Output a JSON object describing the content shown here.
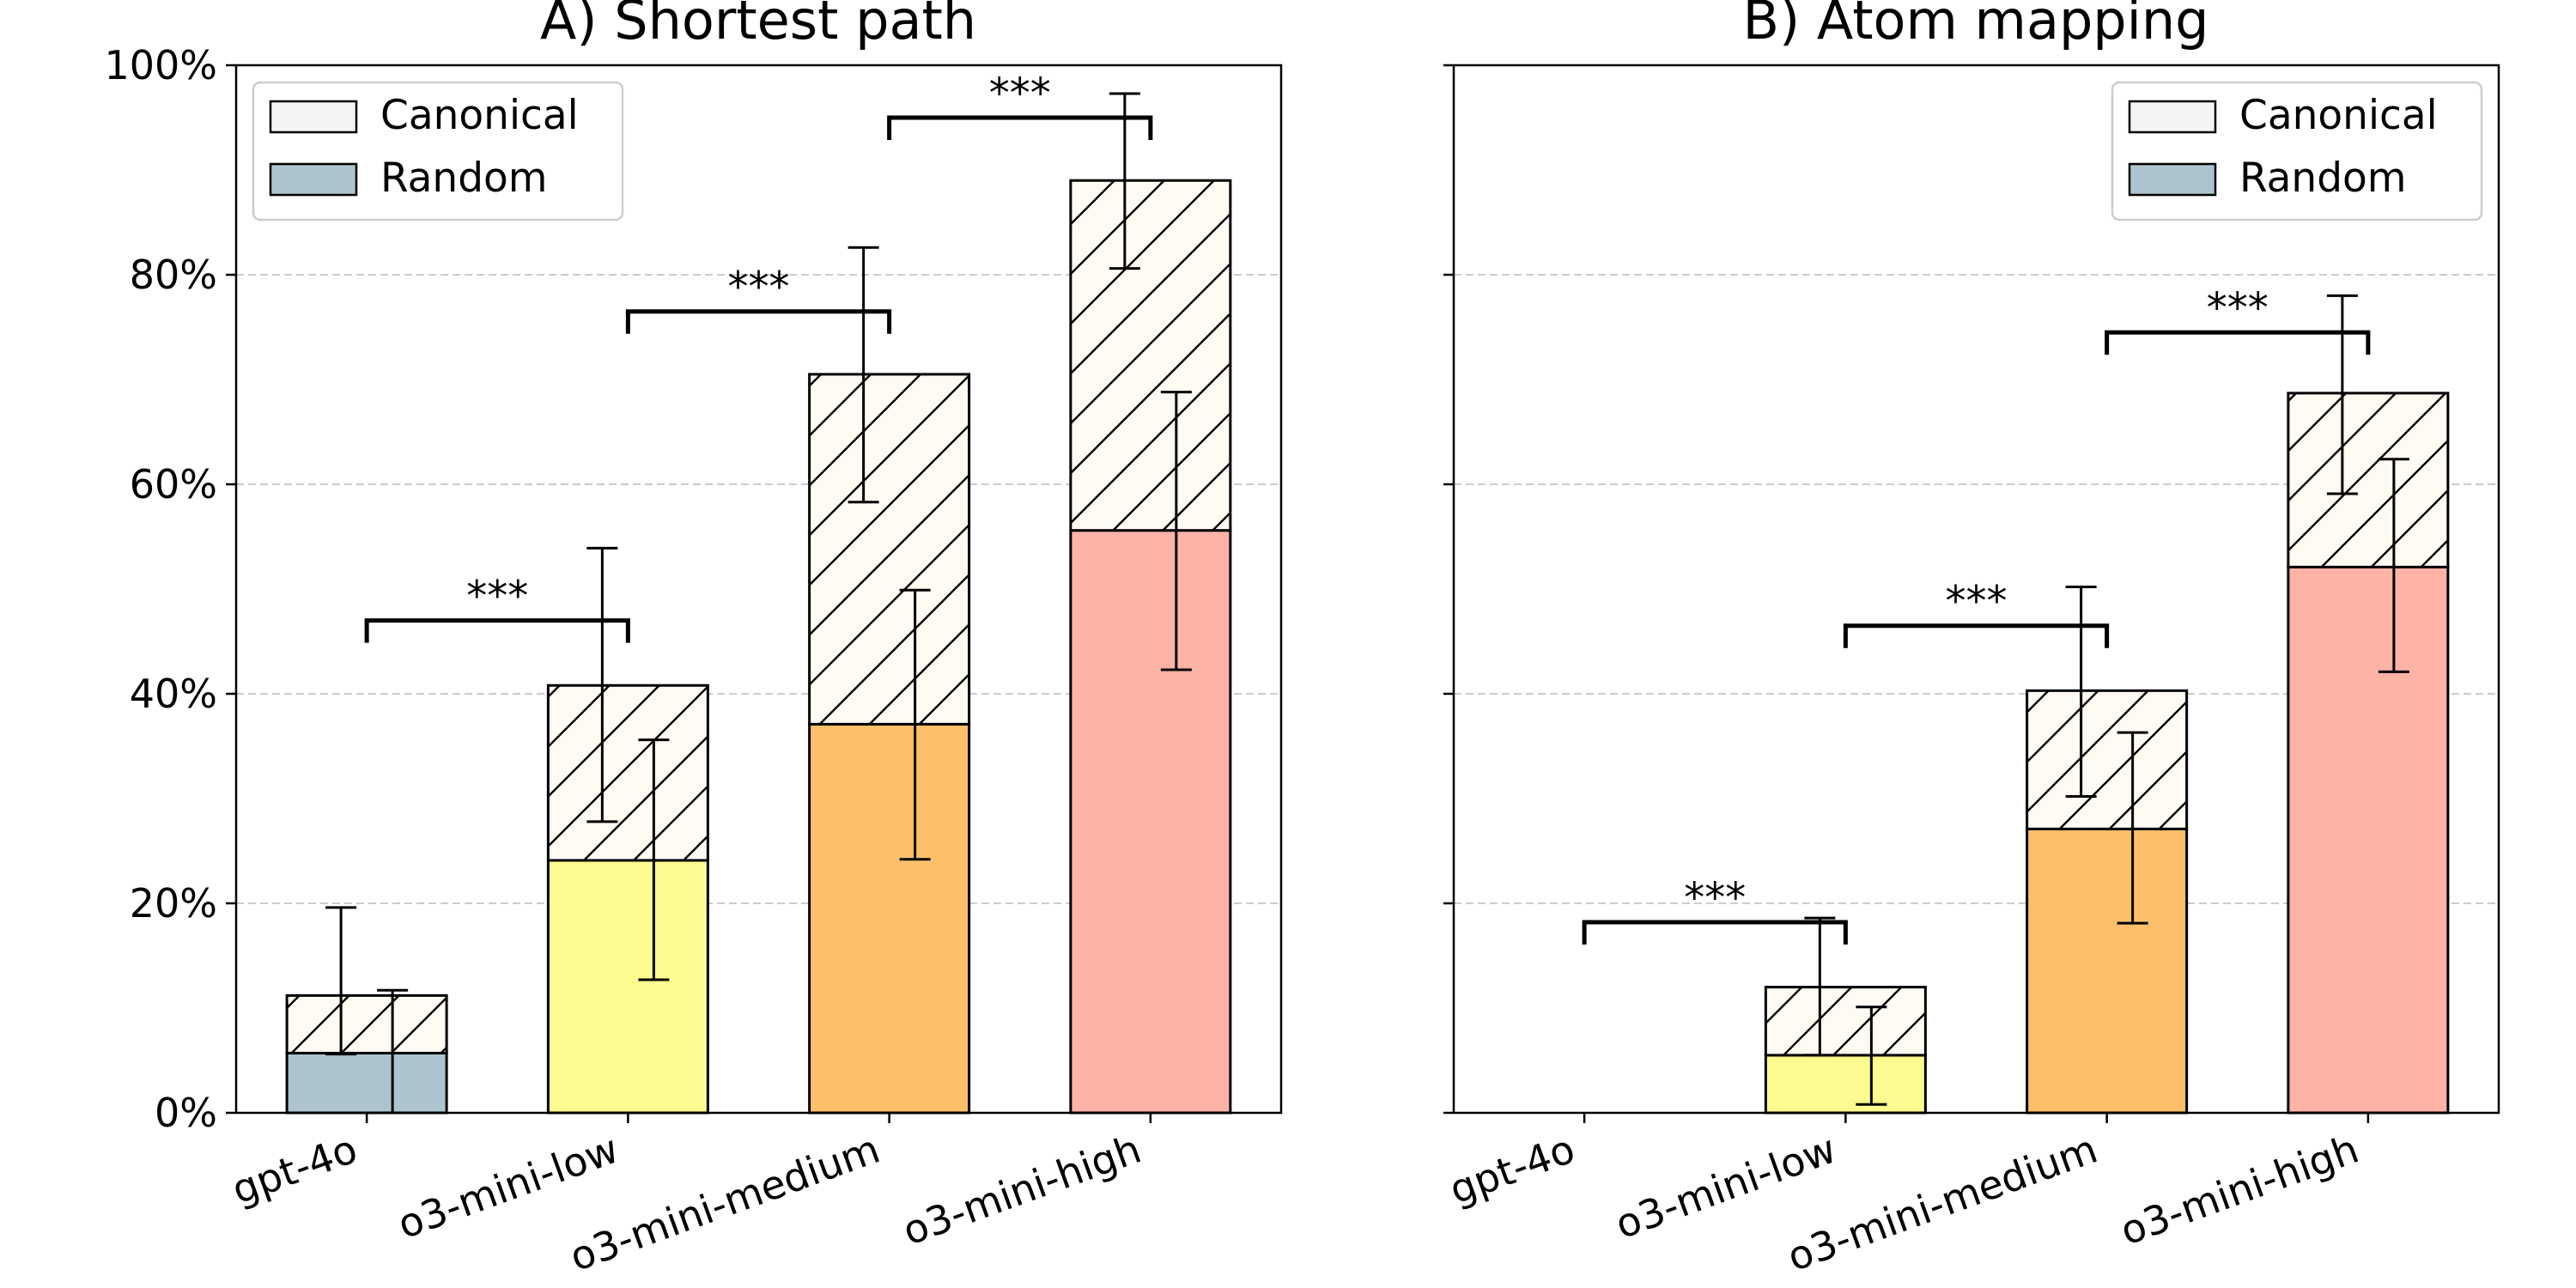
{
  "chart_data": [
    {
      "type": "bar",
      "stacked": true,
      "title": "A) Shortest path",
      "categories": [
        "gpt-4o",
        "o3-mini-low",
        "o3-mini-medium",
        "o3-mini-high"
      ],
      "bar_colors": [
        "#adc4ce",
        "#fbfb8f",
        "#fdbf69",
        "#ffb3a6"
      ],
      "series": [
        {
          "name": "Random",
          "values": [
            5.7,
            24.1,
            37.1,
            55.6
          ],
          "err_low": [
            0,
            12.7,
            24.2,
            42.3
          ],
          "err_high": [
            11.7,
            35.6,
            49.9,
            68.8
          ]
        },
        {
          "name": "Canonical",
          "values": [
            5.5,
            16.7,
            33.4,
            33.4
          ],
          "totals": [
            11.2,
            40.8,
            70.5,
            89.0
          ],
          "err_low": [
            5.6,
            27.8,
            58.3,
            80.6
          ],
          "err_high": [
            19.6,
            53.9,
            82.6,
            97.3
          ]
        }
      ],
      "significance": [
        {
          "from": "gpt-4o",
          "to": "o3-mini-low",
          "label": "***",
          "level": 47
        },
        {
          "from": "o3-mini-low",
          "to": "o3-mini-medium",
          "label": "***",
          "level": 76.5
        },
        {
          "from": "o3-mini-medium",
          "to": "o3-mini-high",
          "label": "***",
          "level": 95
        }
      ],
      "ylim": [
        0,
        100
      ],
      "yticks": [
        "0%",
        "20%",
        "40%",
        "60%",
        "80%",
        "100%"
      ],
      "grid": true,
      "legend": {
        "position": "top-left",
        "entries": [
          "Canonical",
          "Random"
        ]
      }
    },
    {
      "type": "bar",
      "stacked": true,
      "title": "B) Atom mapping",
      "categories": [
        "gpt-4o",
        "o3-mini-low",
        "o3-mini-medium",
        "o3-mini-high"
      ],
      "bar_colors": [
        "#adc4ce",
        "#fbfb8f",
        "#fdbf69",
        "#ffb3a6"
      ],
      "series": [
        {
          "name": "Random",
          "values": [
            0,
            5.5,
            27.1,
            52.1
          ],
          "err_low": [
            null,
            0.8,
            18.1,
            42.1
          ],
          "err_high": [
            null,
            10.1,
            36.3,
            62.4
          ]
        },
        {
          "name": "Canonical",
          "values": [
            0,
            6.5,
            13.2,
            16.6
          ],
          "totals": [
            0,
            12.0,
            40.3,
            68.7
          ],
          "err_low": [
            null,
            5.5,
            30.2,
            59.1
          ],
          "err_high": [
            null,
            18.6,
            50.2,
            78.0
          ]
        }
      ],
      "significance": [
        {
          "from": "gpt-4o",
          "to": "o3-mini-low",
          "label": "***",
          "level": 18.2
        },
        {
          "from": "o3-mini-low",
          "to": "o3-mini-medium",
          "label": "***",
          "level": 46.5
        },
        {
          "from": "o3-mini-medium",
          "to": "o3-mini-high",
          "label": "***",
          "level": 74.5
        }
      ],
      "ylim": [
        0,
        100
      ],
      "yticks": [
        "0%",
        "20%",
        "40%",
        "60%",
        "80%",
        "100%"
      ],
      "grid": true,
      "legend": {
        "position": "top-right",
        "entries": [
          "Canonical",
          "Random"
        ]
      }
    }
  ]
}
